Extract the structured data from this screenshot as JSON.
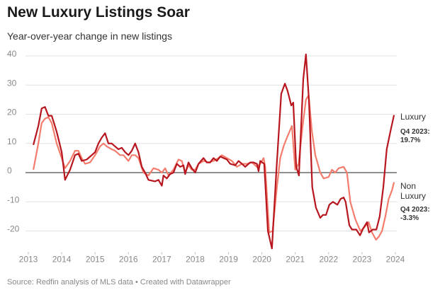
{
  "chart_data": {
    "type": "line",
    "title": "New Luxury Listings Soar",
    "subtitle": "Year-over-year change in new listings",
    "source": "Source: Redfin analysis of MLS data • Created with Datawrapper",
    "xlim": [
      2013,
      2024
    ],
    "xticks": [
      2013,
      2014,
      2015,
      2016,
      2017,
      2018,
      2019,
      2020,
      2021,
      2022,
      2023,
      2024
    ],
    "ylim": [
      -27,
      42
    ],
    "yticks": [
      -20,
      -10,
      0,
      10,
      20,
      30,
      40
    ],
    "grid": true,
    "annotations": [
      "Q4 2023: 19.7%",
      "Q4 2023: -3.3%"
    ],
    "series": [
      {
        "name": "Luxury",
        "color": "#b8161e",
        "x": [
          2013.15,
          2013.3,
          2013.4,
          2013.5,
          2013.6,
          2013.7,
          2013.85,
          2014.0,
          2014.1,
          2014.25,
          2014.4,
          2014.5,
          2014.6,
          2014.75,
          2014.9,
          2015.0,
          2015.1,
          2015.2,
          2015.3,
          2015.4,
          2015.5,
          2015.6,
          2015.7,
          2015.8,
          2015.9,
          2016.0,
          2016.1,
          2016.2,
          2016.3,
          2016.4,
          2016.5,
          2016.6,
          2016.8,
          2016.9,
          2017.0,
          2017.05,
          2017.15,
          2017.25,
          2017.35,
          2017.45,
          2017.55,
          2017.65,
          2017.7,
          2017.8,
          2017.9,
          2018.0,
          2018.1,
          2018.25,
          2018.35,
          2018.45,
          2018.55,
          2018.65,
          2018.75,
          2018.85,
          2018.95,
          2019.05,
          2019.2,
          2019.3,
          2019.4,
          2019.5,
          2019.65,
          2019.75,
          2019.85,
          2019.9,
          2019.95,
          2020.07,
          2020.18,
          2020.3,
          2020.43,
          2020.58,
          2020.69,
          2020.77,
          2020.88,
          2020.94,
          2021.03,
          2021.11,
          2021.24,
          2021.32,
          2021.41,
          2021.51,
          2021.62,
          2021.75,
          2021.83,
          2021.92,
          2022.02,
          2022.13,
          2022.26,
          2022.36,
          2022.45,
          2022.51,
          2022.62,
          2022.7,
          2022.83,
          2022.94,
          2023.04,
          2023.15,
          2023.21,
          2023.32,
          2023.43,
          2023.53,
          2023.64,
          2023.74,
          2023.85,
          2023.96
        ],
        "values": [
          9.5,
          16,
          22,
          22.5,
          19.5,
          19.5,
          14,
          7,
          -2.5,
          1,
          6,
          6.5,
          4,
          4.5,
          6,
          7,
          10,
          12,
          13.5,
          10,
          10,
          9,
          8,
          8.5,
          7,
          6,
          7.5,
          10,
          7,
          2,
          0,
          -2.5,
          -3,
          -2.5,
          -4.5,
          -1,
          -2,
          -0.5,
          0,
          3,
          2,
          2.5,
          -0.5,
          3.5,
          1.5,
          0,
          3,
          5,
          3.5,
          3.5,
          5,
          4,
          5.5,
          5,
          4.5,
          3,
          2.5,
          4,
          3,
          2,
          3.5,
          3.5,
          3,
          0.5,
          4,
          3,
          -20,
          -26,
          0,
          27,
          30.5,
          28,
          23,
          24,
          2,
          -1,
          32,
          40.5,
          25,
          -5,
          -12,
          -15.5,
          -14.5,
          -14.5,
          -11,
          -10,
          -11,
          -9,
          -8.5,
          -10,
          -18,
          -19.5,
          -19.5,
          -21.5,
          -19,
          -17,
          -20.5,
          -19.5,
          -19.5,
          -15,
          -5,
          8,
          14,
          19.7
        ]
      },
      {
        "name": "Non Luxury",
        "color": "#f47c6c",
        "x": [
          2013.15,
          2013.3,
          2013.4,
          2013.5,
          2013.6,
          2013.7,
          2013.85,
          2014.0,
          2014.1,
          2014.25,
          2014.4,
          2014.5,
          2014.6,
          2014.7,
          2014.85,
          2015.0,
          2015.15,
          2015.25,
          2015.35,
          2015.5,
          2015.6,
          2015.75,
          2015.85,
          2016.0,
          2016.1,
          2016.2,
          2016.3,
          2016.45,
          2016.6,
          2016.75,
          2016.9,
          2017.0,
          2017.1,
          2017.2,
          2017.35,
          2017.5,
          2017.6,
          2017.7,
          2017.8,
          2017.9,
          2018.0,
          2018.1,
          2018.25,
          2018.4,
          2018.55,
          2018.7,
          2018.8,
          2018.95,
          2019.1,
          2019.25,
          2019.4,
          2019.55,
          2019.7,
          2019.85,
          2019.95,
          2020.05,
          2020.1,
          2020.22,
          2020.32,
          2020.45,
          2020.55,
          2020.65,
          2020.75,
          2020.9,
          2021.0,
          2021.1,
          2021.22,
          2021.32,
          2021.4,
          2021.5,
          2021.6,
          2021.75,
          2021.85,
          2022.0,
          2022.1,
          2022.2,
          2022.3,
          2022.45,
          2022.55,
          2022.65,
          2022.8,
          2022.95,
          2023.05,
          2023.12,
          2023.2,
          2023.3,
          2023.42,
          2023.5,
          2023.6,
          2023.7,
          2023.8,
          2023.9,
          2023.96
        ],
        "values": [
          1,
          10,
          17,
          18.5,
          19,
          17,
          10,
          5,
          1.5,
          4,
          7.5,
          7.5,
          5,
          3,
          3.5,
          6,
          9,
          10,
          9,
          8,
          7.5,
          6,
          6,
          4,
          6,
          6,
          5,
          0,
          -1,
          1.5,
          1,
          0,
          1.5,
          -1,
          1,
          4.5,
          4,
          0,
          2.5,
          1,
          1,
          3,
          4,
          3.5,
          4,
          5,
          6,
          5,
          4,
          2,
          3,
          3,
          3.5,
          2,
          3,
          5,
          2,
          -20.5,
          -20,
          -5,
          5,
          9,
          12,
          16,
          1,
          3,
          16,
          25,
          26.5,
          14,
          6,
          0,
          -2,
          -1.5,
          1,
          0,
          1.5,
          2,
          0,
          -10,
          -16,
          -20,
          -19,
          -18,
          -17,
          -20.5,
          -23,
          -22,
          -20,
          -15,
          -9,
          -6,
          -3.3
        ]
      }
    ]
  }
}
